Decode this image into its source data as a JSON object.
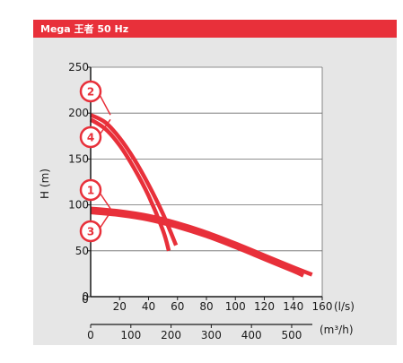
{
  "header": {
    "title": "Mega 王者 50 Hz"
  },
  "colors": {
    "accent": "#e8303a",
    "panel": "#e6e6e6",
    "plot": "#ffffff"
  },
  "chart_data": {
    "type": "line",
    "title": "Mega 王者 50 Hz",
    "ylabel": "H (m)",
    "xlabel": "(l/s)",
    "xlabel_secondary": "(m³/h)",
    "xlim": [
      0,
      160
    ],
    "ylim": [
      0,
      250
    ],
    "x_ticks": [
      20,
      40,
      60,
      80,
      100,
      120,
      140,
      160
    ],
    "x_ticks_secondary": [
      0,
      100,
      200,
      300,
      400,
      500
    ],
    "x_zero_label": "0",
    "y_ticks": [
      0,
      50,
      100,
      150,
      200,
      250
    ],
    "grid": true,
    "series": [
      {
        "name": "1",
        "x": [
          0,
          20,
          40,
          60,
          80,
          100,
          120,
          140,
          153
        ],
        "y": [
          96,
          93,
          88,
          80,
          70,
          58,
          45,
          32,
          24
        ]
      },
      {
        "name": "2",
        "x": [
          0,
          10,
          20,
          30,
          40,
          50,
          59
        ],
        "y": [
          198,
          190,
          173,
          150,
          122,
          90,
          56
        ]
      },
      {
        "name": "3",
        "x": [
          0,
          20,
          40,
          60,
          80,
          100,
          120,
          140,
          147
        ],
        "y": [
          92,
          89,
          84,
          76,
          66,
          54,
          41,
          28,
          23
        ]
      },
      {
        "name": "4",
        "x": [
          0,
          10,
          20,
          30,
          40,
          50,
          54
        ],
        "y": [
          193,
          183,
          165,
          140,
          110,
          72,
          50
        ]
      }
    ]
  }
}
